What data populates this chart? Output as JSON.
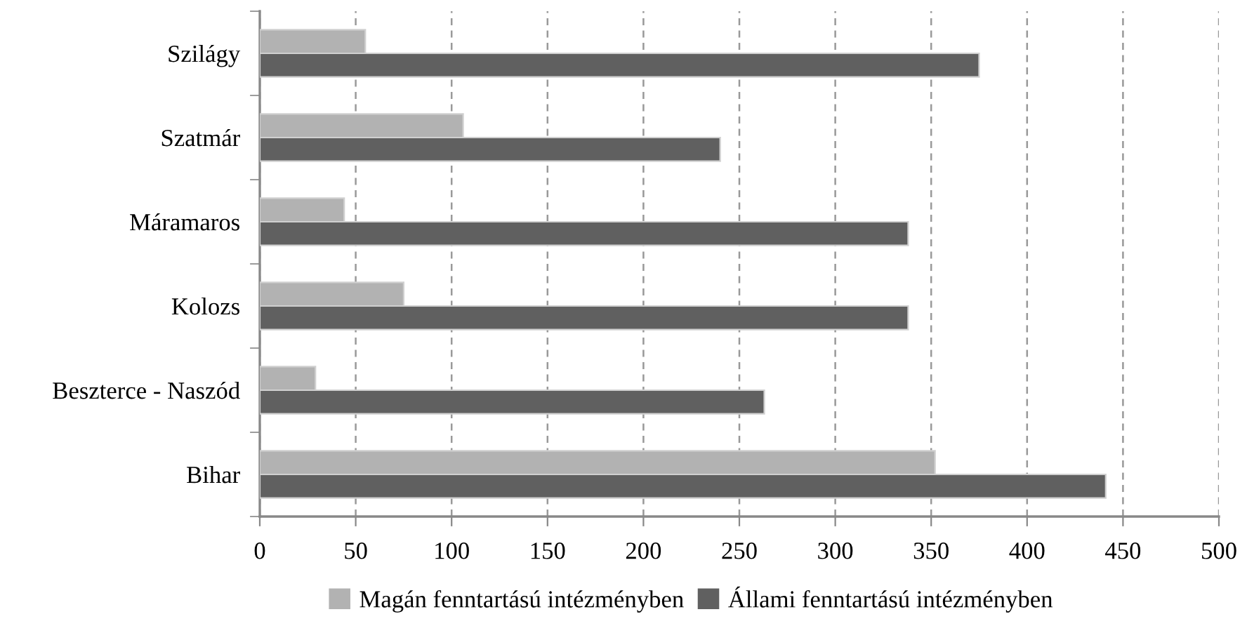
{
  "chart_data": {
    "type": "bar",
    "orientation": "horizontal",
    "categories": [
      "Szilágy",
      "Szatmár",
      "Máramaros",
      "Kolozs",
      "Beszterce - Naszód",
      "Bihar"
    ],
    "series": [
      {
        "name": "Magán fenntartású intézményben",
        "color": "#b2b2b2",
        "values": [
          55,
          106,
          44,
          75,
          29,
          352
        ]
      },
      {
        "name": "Állami fenntartású intézményben",
        "color": "#606060",
        "values": [
          375,
          240,
          338,
          338,
          263,
          441
        ]
      }
    ],
    "xlim": [
      0,
      500
    ],
    "xticks": [
      0,
      50,
      100,
      150,
      200,
      250,
      300,
      350,
      400,
      450,
      500
    ],
    "grid": "x",
    "legend": "bottom"
  }
}
